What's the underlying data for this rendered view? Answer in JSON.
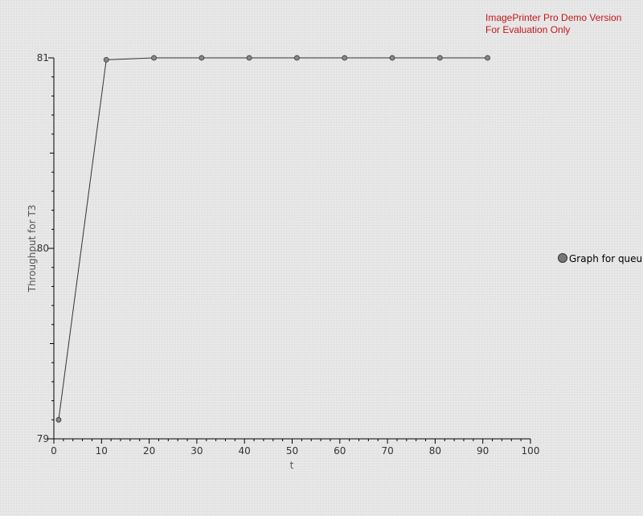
{
  "watermark": {
    "line1": "ImagePrinter Pro Demo Version",
    "line2": "For Evaluation Only"
  },
  "chart_data": {
    "type": "line",
    "title": "",
    "xlabel": "t",
    "ylabel": "Throughput for T3",
    "xlim": [
      0,
      100
    ],
    "ylim": [
      79,
      81
    ],
    "x_ticks": [
      0,
      10,
      20,
      30,
      40,
      50,
      60,
      70,
      80,
      90,
      100
    ],
    "y_ticks": [
      79,
      80,
      81
    ],
    "grid": false,
    "legend": {
      "position": "right",
      "entries": [
        "Graph for queu"
      ]
    },
    "series": [
      {
        "name": "Graph for queu",
        "color": "#333333",
        "x": [
          1,
          11,
          21,
          31,
          41,
          51,
          61,
          71,
          81,
          91
        ],
        "y": [
          79.1,
          80.99,
          81.0,
          81.0,
          81.0,
          81.0,
          81.0,
          81.0,
          81.0,
          81.0
        ]
      }
    ]
  }
}
